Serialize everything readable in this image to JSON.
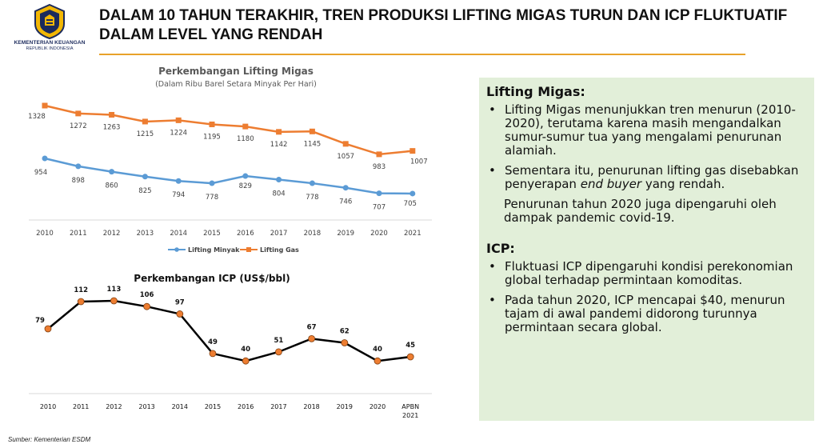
{
  "header": {
    "title": "DALAM 10 TAHUN TERAKHIR, TREN PRODUKSI LIFTING MIGAS TURUN DAN ICP FLUKTUATIF DALAM LEVEL YANG RENDAH",
    "logo_line1": "KEMENTERIAN KEUANGAN",
    "logo_line2": "REPUBLIK INDONESIA"
  },
  "panel": {
    "section1_heading": "Lifting Migas:",
    "section1_bullets": [
      "Lifting Migas menunjukkan tren menurun (2010-2020), terutama karena masih mengandalkan sumur-sumur tua yang mengalami penurunan alamiah.",
      "Sementara itu, penurunan lifting gas disebabkan penyerapan end buyer yang rendah."
    ],
    "bullet2_pre": "Sementara itu, penurunan lifting gas disebabkan penyerapan ",
    "bullet2_em": "end buyer",
    "bullet2_post": " yang rendah.",
    "section1_note": "Penurunan tahun 2020 juga dipengaruhi oleh dampak pandemic covid-19.",
    "section2_heading": "ICP:",
    "section2_bullets": [
      "Fluktuasi ICP dipengaruhi kondisi perekonomian global terhadap permintaan komoditas.",
      "Pada tahun 2020, ICP mencapai $40, menurun tajam di awal pandemi didorong turunnya permintaan secara global."
    ],
    "bullet_symbol": "•"
  },
  "source": "Sumber: Kementerian ESDM",
  "colors": {
    "minyak": "#5b9bd5",
    "gas": "#ed7d31",
    "icp_line": "#000000",
    "icp_marker": "#ed7d31",
    "panel_bg": "#e2efd9",
    "rule": "#e8a22a"
  },
  "chart_data": [
    {
      "type": "line",
      "title": "Perkembangan Lifting Migas",
      "subtitle": "(Dalam Ribu Barel Setara Minyak Per Hari)",
      "categories": [
        "2010",
        "2011",
        "2012",
        "2013",
        "2014",
        "2015",
        "2016",
        "2017",
        "2018",
        "2019",
        "2020",
        "2021"
      ],
      "series": [
        {
          "name": "Lifting Minyak",
          "values": [
            954,
            898,
            860,
            825,
            794,
            778,
            829,
            804,
            778,
            746,
            707,
            705
          ]
        },
        {
          "name": "Lifting Gas",
          "values": [
            1328,
            1272,
            1263,
            1215,
            1224,
            1195,
            1180,
            1142,
            1145,
            1057,
            983,
            1007
          ]
        }
      ],
      "ylim": [
        650,
        1400
      ],
      "legend": "bottom",
      "grid": false
    },
    {
      "type": "line",
      "title": "Perkembangan ICP (US$/bbl)",
      "categories": [
        "2010",
        "2011",
        "2012",
        "2013",
        "2014",
        "2015",
        "2016",
        "2017",
        "2018",
        "2019",
        "2020",
        "APBN 2021"
      ],
      "series": [
        {
          "values": [
            79,
            112,
            113,
            106,
            97,
            49,
            40,
            51,
            67,
            62,
            40,
            45
          ]
        }
      ],
      "ylim": [
        30,
        120
      ],
      "grid": false
    }
  ]
}
